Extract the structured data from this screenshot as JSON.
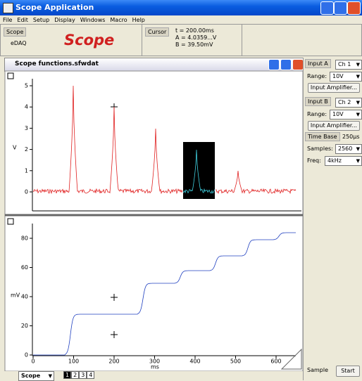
{
  "app": {
    "title": "Scope Application",
    "menu": [
      "File",
      "Edit",
      "Setup",
      "Display",
      "Windows",
      "Macro",
      "Help"
    ],
    "toolbar": {
      "scope_label": "Scope",
      "device": "eDAQ",
      "logo": "Scope",
      "cursor_label": "Cursor",
      "readings": [
        "t = 200.00ms",
        "A = 4.0359...V",
        "B = 39.50mV"
      ]
    }
  },
  "document": {
    "title": "Scope functions.sfwdat",
    "plot_top": {
      "ylabel": "V",
      "yticks": [
        0,
        1,
        2,
        3,
        4,
        5
      ]
    },
    "plot_bottom": {
      "ylabel": "mV",
      "yticks": [
        0,
        20,
        40,
        60,
        80
      ],
      "xlabel": "ms",
      "xticks": [
        0,
        100,
        200,
        300,
        400,
        500,
        600
      ]
    },
    "view": "Scope",
    "tabs": [
      "1",
      "2",
      "3",
      "4"
    ]
  },
  "panel": {
    "input_a": {
      "label": "Input A",
      "channel": "Ch 1",
      "range_label": "Range:",
      "range": "10V",
      "button": "Input Amplifier..."
    },
    "input_b": {
      "label": "Input B",
      "channel": "Ch 2",
      "range_label": "Range:",
      "range": "10V",
      "button": "Input Amplifier..."
    },
    "timebase": {
      "label": "Time Base",
      "value": "250µs",
      "samples_label": "Samples:",
      "samples": "2560",
      "freq_label": "Freq:",
      "freq": "4kHz"
    },
    "sample": "Sample",
    "start": "Start"
  }
}
